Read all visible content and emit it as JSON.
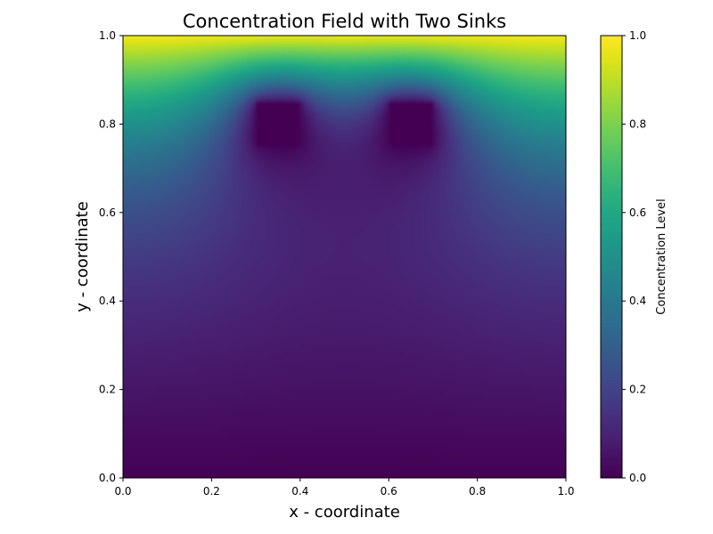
{
  "chart_data": {
    "type": "heatmap",
    "title": "Concentration Field with Two Sinks",
    "xlabel": "x - coordinate",
    "ylabel": "y - coordinate",
    "xlim": [
      0.0,
      1.0
    ],
    "ylim": [
      0.0,
      1.0
    ],
    "x_ticks": [
      "0.0",
      "0.2",
      "0.4",
      "0.6",
      "0.8",
      "1.0"
    ],
    "y_ticks": [
      "0.0",
      "0.2",
      "0.4",
      "0.6",
      "0.8",
      "1.0"
    ],
    "colormap": "viridis",
    "grid": false,
    "boundary_conditions": {
      "top_edge_value": 1.0,
      "bottom_edge_value": 0.0
    },
    "sinks": [
      {
        "x_range": [
          0.3,
          0.4
        ],
        "y_range": [
          0.75,
          0.85
        ],
        "value": 0.0
      },
      {
        "x_range": [
          0.6,
          0.7
        ],
        "y_range": [
          0.75,
          0.85
        ],
        "value": 0.0
      }
    ],
    "colorbar": {
      "label": "Concentration Level",
      "range": [
        0.0,
        1.0
      ],
      "ticks": [
        "0.0",
        "0.2",
        "0.4",
        "0.6",
        "0.8",
        "1.0"
      ]
    }
  }
}
